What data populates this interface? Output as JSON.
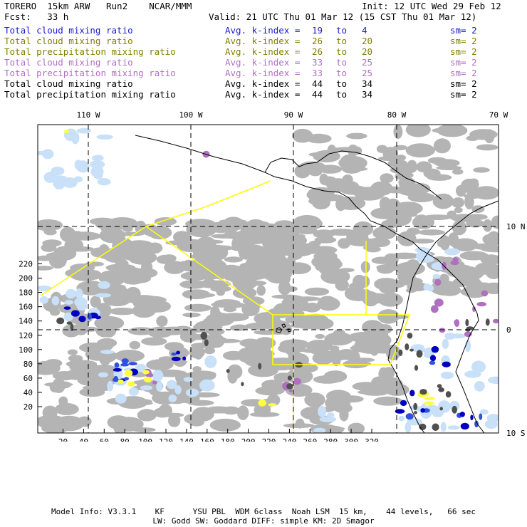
{
  "header": {
    "model": "TORERO  15km ARW   Run2    NCAR/MMM",
    "init": "Init: 12 UTC Wed 29 Feb 12",
    "fcst": "Fcst:   33 h",
    "valid": "Valid: 21 UTC Thu 01 Mar 12 (15 CST Thu 01 Mar 12)"
  },
  "legend": [
    {
      "field": "Total cloud mixing ratio",
      "stat": "Avg. k-index =",
      "k_from": "19",
      "to": "to",
      "k_to": "4",
      "sm": "sm= 2",
      "color": "#1a1acc"
    },
    {
      "field": "Total cloud mixing ratio",
      "stat": "Avg. k-index =",
      "k_from": "26",
      "to": "to",
      "k_to": "20",
      "sm": "sm= 2",
      "color": "#808000"
    },
    {
      "field": "Total precipitation mixing ratio",
      "stat": "Avg. k-index =",
      "k_from": "26",
      "to": "to",
      "k_to": "20",
      "sm": "sm= 2",
      "color": "#808000"
    },
    {
      "field": "Total cloud mixing ratio",
      "stat": "Avg. k-index =",
      "k_from": "33",
      "to": "to",
      "k_to": "25",
      "sm": "sm= 2",
      "color": "#b070c0"
    },
    {
      "field": "Total precipitation mixing ratio",
      "stat": "Avg. k-index =",
      "k_from": "33",
      "to": "to",
      "k_to": "25",
      "sm": "sm= 2",
      "color": "#b070c0"
    },
    {
      "field": "Total cloud mixing ratio",
      "stat": "Avg. k-index =",
      "k_from": "44",
      "to": "to",
      "k_to": "34",
      "sm": "sm= 2",
      "color": "#000000"
    },
    {
      "field": "Total precipitation mixing ratio",
      "stat": "Avg. k-index =",
      "k_from": "44",
      "to": "to",
      "k_to": "34",
      "sm": "sm= 2",
      "color": "#000000"
    }
  ],
  "map": {
    "lon_labels": [
      "110 W",
      "100 W",
      "90 W",
      "80 W",
      "70 W"
    ],
    "lat_labels": [
      "10 N",
      "0",
      "10 S"
    ],
    "x_ticks": [
      "20",
      "40",
      "60",
      "80",
      "100",
      "120",
      "140",
      "160",
      "180",
      "200",
      "220",
      "240",
      "260",
      "280",
      "300",
      "320"
    ],
    "y_ticks": [
      "20",
      "40",
      "60",
      "80",
      "100",
      "120",
      "140",
      "160",
      "180",
      "200",
      "220"
    ],
    "colors": {
      "cloud_gray": "#b4b4b4",
      "dark_gray": "#505050",
      "light_blue": "#c8e0f8",
      "blue": "#3050e0",
      "dark_blue": "#0000c0",
      "yellow": "#ffff40",
      "purple": "#b070c0",
      "coast": "#000000",
      "boundary": "#ffff00",
      "grid": "#000000"
    }
  },
  "footer": {
    "line1": "Model Info: V3.3.1    KF      YSU PBL  WDM 6class  Noah LSM  15 km,    44 levels,   66 sec",
    "line2": "LW: Godd SW: Goddard DIFF: simple KM: 2D Smagor"
  }
}
